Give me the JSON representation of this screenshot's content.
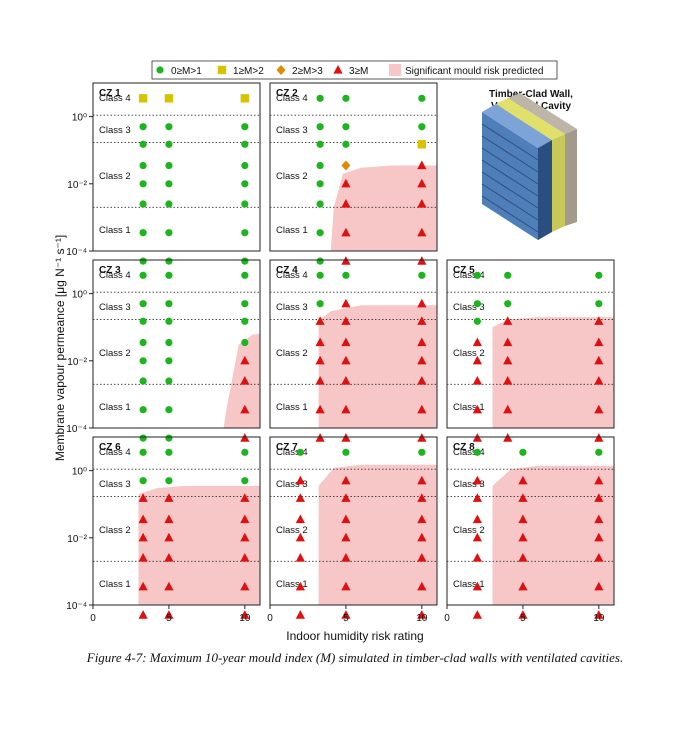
{
  "caption": "Figure 4-7: Maximum 10-year mould index (M) simulated in timber-clad walls with ventilated cavities.",
  "colors": {
    "green": "#1db51d",
    "yellow": "#d6c400",
    "orange": "#e08a00",
    "red": "#e01010",
    "risk_fill": "#f7c6c6"
  },
  "legend": [
    {
      "label": "0≥M>1",
      "marker": "circle",
      "color": "#1db51d"
    },
    {
      "label": "1≥M>2",
      "marker": "square",
      "color": "#d6c400"
    },
    {
      "label": "2≥M>3",
      "marker": "diamond",
      "color": "#e08a00"
    },
    {
      "label": "3≥M",
      "marker": "triangle",
      "color": "#e01010"
    },
    {
      "label": "Significant mould risk predicted",
      "marker": "patch",
      "color": "#f7c6c6"
    }
  ],
  "inset": {
    "title_line1": "Timber-Clad Wall,",
    "title_line2": "Ventilated Cavity"
  },
  "chart_data": {
    "type": "scatter",
    "xlabel": "Indoor humidity risk rating",
    "ylabel": "Membrane vapour permeance [μg N⁻¹ s⁻¹]",
    "xlim": [
      0,
      11
    ],
    "ylim": [
      0.0001,
      10
    ],
    "yscale": "log",
    "x_ticks": [
      "0",
      "5",
      "10"
    ],
    "y_ticks": [
      "10⁻⁴",
      "10⁻²",
      "10⁰"
    ],
    "permeance_levels": [
      5e-05,
      0.00035,
      0.0025,
      0.01,
      0.035,
      0.15,
      0.5,
      3.5
    ],
    "class_boundaries": [
      0.002,
      0.17,
      1.1
    ],
    "class_labels": [
      "Class 1",
      "Class 2",
      "Class 3",
      "Class 4"
    ],
    "panels": [
      {
        "name": "CZ 1",
        "x": [
          3.3,
          5,
          10
        ],
        "marks": [
          [
            "g",
            "g",
            "g"
          ],
          [
            "g",
            "g",
            "g"
          ],
          [
            "g",
            "g",
            "g"
          ],
          [
            "g",
            "g",
            "g"
          ],
          [
            "g",
            "g",
            "g"
          ],
          [
            "g",
            "g",
            "g"
          ],
          [
            "g",
            "g",
            "g"
          ],
          [
            "y",
            "y",
            "y"
          ]
        ],
        "risk_boundary": null
      },
      {
        "name": "CZ 2",
        "x": [
          3.3,
          5,
          10
        ],
        "marks": [
          [
            "g",
            "r",
            "r"
          ],
          [
            "g",
            "r",
            "r"
          ],
          [
            "g",
            "r",
            "r"
          ],
          [
            "g",
            "r",
            "r"
          ],
          [
            "g",
            "o",
            "r"
          ],
          [
            "g",
            "g",
            "y"
          ],
          [
            "g",
            "g",
            "g"
          ],
          [
            "g",
            "g",
            "g"
          ]
        ],
        "risk_boundary": [
          [
            4,
            0.0001
          ],
          [
            4.2,
            0.002
          ],
          [
            4.8,
            0.02
          ],
          [
            6,
            0.03
          ],
          [
            8,
            0.035
          ],
          [
            11,
            0.035
          ]
        ]
      },
      {
        "name": "CZ 3",
        "x": [
          3.3,
          5,
          10
        ],
        "marks": [
          [
            "g",
            "g",
            "r"
          ],
          [
            "g",
            "g",
            "r"
          ],
          [
            "g",
            "g",
            "r"
          ],
          [
            "g",
            "g",
            "r"
          ],
          [
            "g",
            "g",
            "g"
          ],
          [
            "g",
            "g",
            "g"
          ],
          [
            "g",
            "g",
            "g"
          ],
          [
            "g",
            "g",
            "g"
          ]
        ],
        "risk_boundary": [
          [
            8.6,
            0.0001
          ],
          [
            8.8,
            0.0004
          ],
          [
            9.1,
            0.002
          ],
          [
            9.6,
            0.03
          ],
          [
            10.5,
            0.06
          ],
          [
            11,
            0.065
          ]
        ]
      },
      {
        "name": "CZ 4",
        "x": [
          3.3,
          5,
          10
        ],
        "marks": [
          [
            "r",
            "r",
            "r"
          ],
          [
            "r",
            "r",
            "r"
          ],
          [
            "r",
            "r",
            "r"
          ],
          [
            "r",
            "r",
            "r"
          ],
          [
            "r",
            "r",
            "r"
          ],
          [
            "r",
            "r",
            "r"
          ],
          [
            "g",
            "r",
            "r"
          ],
          [
            "g",
            "g",
            "g"
          ]
        ],
        "risk_boundary": [
          [
            3.2,
            0.0001
          ],
          [
            3.2,
            0.15
          ],
          [
            4,
            0.3
          ],
          [
            6,
            0.45
          ],
          [
            11,
            0.45
          ]
        ]
      },
      {
        "name": "CZ 5",
        "x": [
          2,
          4,
          10
        ],
        "marks": [
          [
            "r",
            "r",
            "r"
          ],
          [
            "r",
            "r",
            "r"
          ],
          [
            "r",
            "r",
            "r"
          ],
          [
            "r",
            "r",
            "r"
          ],
          [
            "r",
            "r",
            "r"
          ],
          [
            "g",
            "r",
            "r"
          ],
          [
            "g",
            "g",
            "g"
          ],
          [
            "g",
            "g",
            "g"
          ]
        ],
        "risk_boundary": [
          [
            3,
            0.0001
          ],
          [
            3,
            0.1
          ],
          [
            4,
            0.17
          ],
          [
            6,
            0.2
          ],
          [
            11,
            0.2
          ]
        ]
      },
      {
        "name": "CZ 6",
        "x": [
          3.3,
          5,
          10
        ],
        "marks": [
          [
            "r",
            "r",
            "r"
          ],
          [
            "r",
            "r",
            "r"
          ],
          [
            "r",
            "r",
            "r"
          ],
          [
            "r",
            "r",
            "r"
          ],
          [
            "r",
            "r",
            "r"
          ],
          [
            "r",
            "r",
            "r"
          ],
          [
            "g",
            "g",
            "g"
          ],
          [
            "g",
            "g",
            "g"
          ]
        ],
        "risk_boundary": [
          [
            3,
            0.0001
          ],
          [
            3,
            0.2
          ],
          [
            4.2,
            0.3
          ],
          [
            6,
            0.35
          ],
          [
            11,
            0.35
          ]
        ]
      },
      {
        "name": "CZ 7",
        "x": [
          2,
          5,
          10
        ],
        "marks": [
          [
            "r",
            "r",
            "r"
          ],
          [
            "r",
            "r",
            "r"
          ],
          [
            "r",
            "r",
            "r"
          ],
          [
            "r",
            "r",
            "r"
          ],
          [
            "r",
            "r",
            "r"
          ],
          [
            "r",
            "r",
            "r"
          ],
          [
            "r",
            "r",
            "r"
          ],
          [
            "g",
            "g",
            "g"
          ]
        ],
        "risk_boundary": [
          [
            3.2,
            0.0001
          ],
          [
            3.2,
            0.35
          ],
          [
            4.2,
            1.2
          ],
          [
            6,
            1.5
          ],
          [
            11,
            1.5
          ]
        ]
      },
      {
        "name": "CZ 8",
        "x": [
          2,
          5,
          10
        ],
        "marks": [
          [
            "r",
            "r",
            "r"
          ],
          [
            "r",
            "r",
            "r"
          ],
          [
            "r",
            "r",
            "r"
          ],
          [
            "r",
            "r",
            "r"
          ],
          [
            "r",
            "r",
            "r"
          ],
          [
            "r",
            "r",
            "r"
          ],
          [
            "r",
            "r",
            "r"
          ],
          [
            "g",
            "g",
            "g"
          ]
        ],
        "risk_boundary": [
          [
            3,
            0.0001
          ],
          [
            3,
            0.35
          ],
          [
            4.2,
            1.1
          ],
          [
            6,
            1.4
          ],
          [
            11,
            1.4
          ]
        ]
      }
    ]
  }
}
